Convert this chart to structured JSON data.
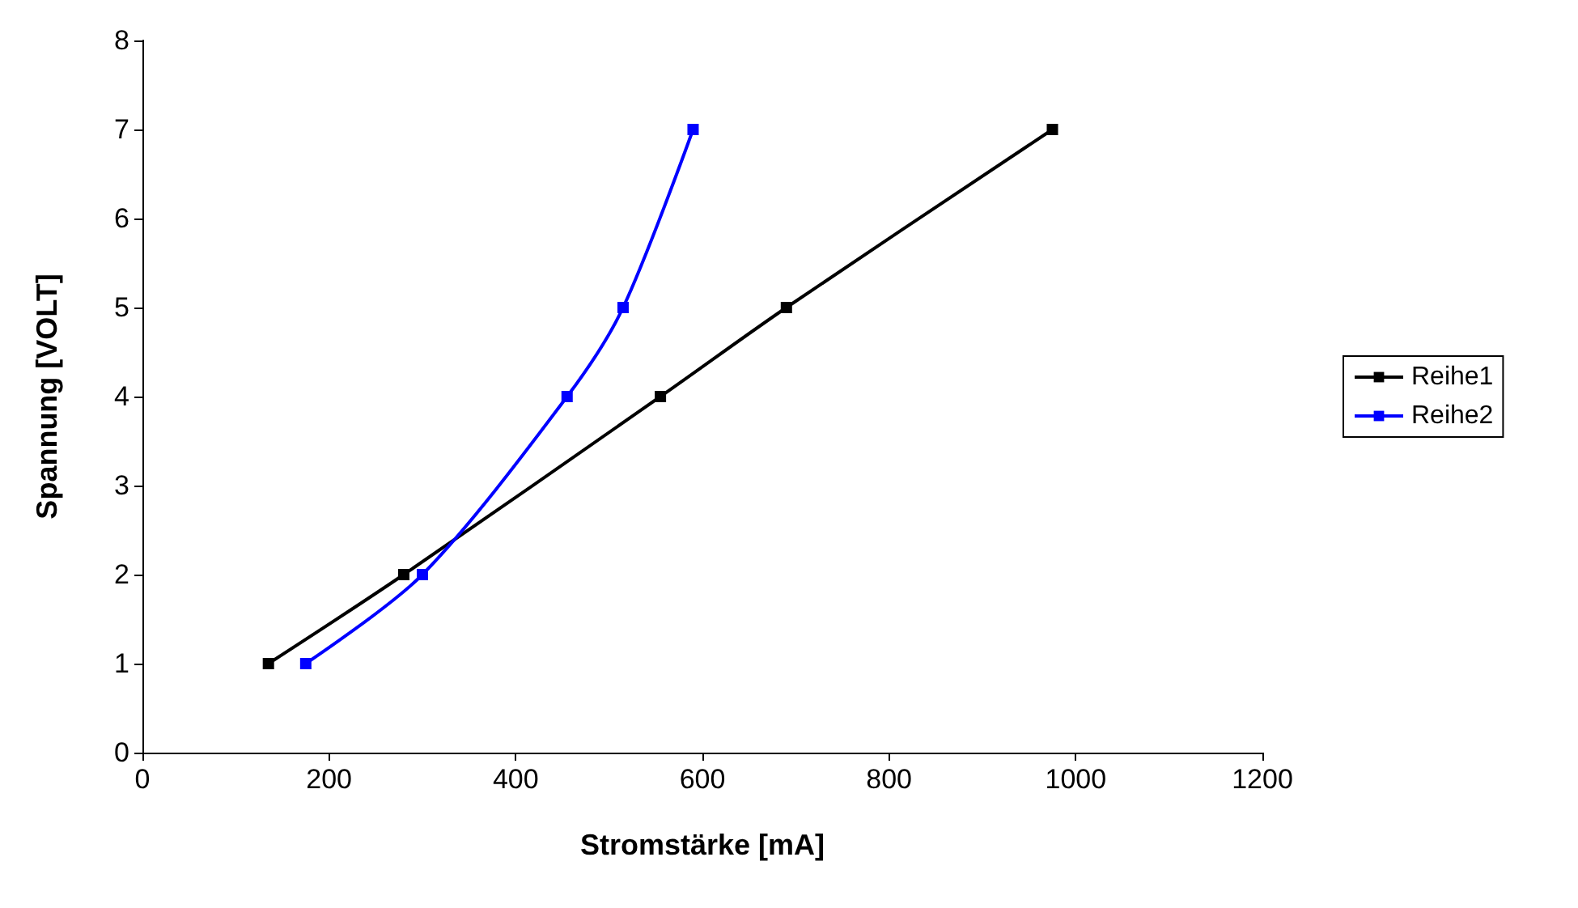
{
  "chart_data": {
    "type": "line",
    "xlabel": "Stromstärke [mA]",
    "ylabel": "Spannung [VOLT]",
    "series": [
      {
        "name": "Reihe1",
        "color": "#000000",
        "x": [
          135,
          280,
          555,
          690,
          975
        ],
        "values": [
          1,
          2,
          4,
          5,
          7
        ]
      },
      {
        "name": "Reihe2",
        "color": "#0000ff",
        "x": [
          175,
          300,
          455,
          515,
          590
        ],
        "values": [
          1,
          2,
          4,
          5,
          7
        ]
      }
    ],
    "xlim": [
      0,
      1200
    ],
    "xticks": [
      0,
      200,
      400,
      600,
      800,
      1000,
      1200
    ],
    "ylim": [
      0,
      8
    ],
    "yticks": [
      0,
      1,
      2,
      3,
      4,
      5,
      6,
      7,
      8
    ],
    "grid": false,
    "legend": "right",
    "marker": "square",
    "line_style": "solid"
  }
}
